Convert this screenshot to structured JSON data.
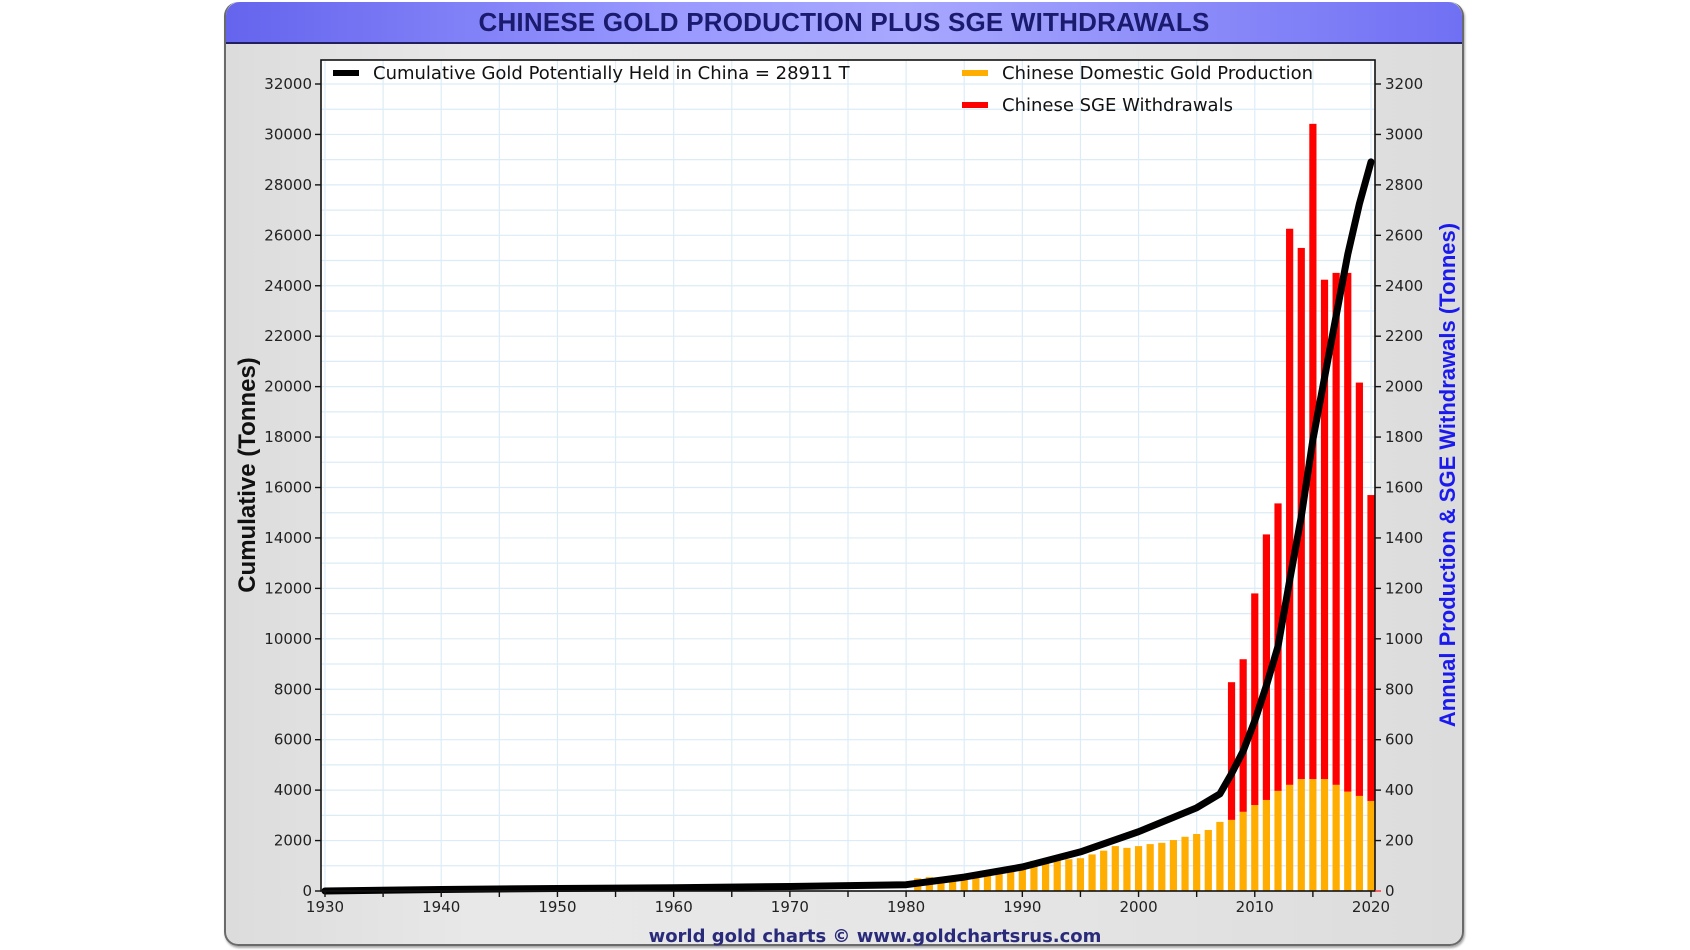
{
  "chart_data": {
    "type": "bar",
    "title": "CHINESE GOLD PRODUCTION PLUS SGE WITHDRAWALS",
    "xlabel": "",
    "ylabel_left": "Cumulative (Tonnes)",
    "ylabel_right": "Annual Production & SGE Withdrawals (Tonnes)",
    "credit": "world gold charts © www.goldchartsrus.com",
    "xlim": [
      1930,
      2020
    ],
    "ylim_left": [
      0,
      32000
    ],
    "ylim_right": [
      0,
      3200
    ],
    "grid": true,
    "legend_position": "top",
    "x_ticks": [
      1930,
      1940,
      1950,
      1960,
      1970,
      1980,
      1990,
      2000,
      2010,
      2020
    ],
    "y_ticks_left": [
      0,
      2000,
      4000,
      6000,
      8000,
      10000,
      12000,
      14000,
      16000,
      18000,
      20000,
      22000,
      24000,
      26000,
      28000,
      30000,
      32000
    ],
    "y_ticks_right": [
      0,
      200,
      400,
      600,
      800,
      1000,
      1200,
      1400,
      1600,
      1800,
      2000,
      2200,
      2400,
      2600,
      2800,
      3000,
      3200
    ],
    "legend": [
      {
        "label": "Cumulative Gold Potentially Held in China  = 28911 T",
        "color": "#000000"
      },
      {
        "label": "Chinese Domestic Gold Production",
        "color": "#ffad00"
      },
      {
        "label": "Chinese SGE Withdrawals",
        "color": "#ff0000"
      }
    ],
    "series": [
      {
        "name": "Chinese Domestic Gold Production",
        "axis": "right",
        "color": "#ffad00",
        "x": [
          1981,
          1982,
          1983,
          1984,
          1985,
          1986,
          1987,
          1988,
          1989,
          1990,
          1991,
          1992,
          1993,
          1994,
          1995,
          1996,
          1997,
          1998,
          1999,
          2000,
          2001,
          2002,
          2003,
          2004,
          2005,
          2006,
          2007,
          2008,
          2009,
          2010,
          2011,
          2012,
          2013,
          2014,
          2015,
          2016,
          2017,
          2018,
          2019,
          2020
        ],
        "values": [
          50,
          55,
          55,
          55,
          63,
          63,
          67,
          72,
          90,
          96,
          120,
          126,
          122,
          126,
          130,
          145,
          160,
          178,
          171,
          178,
          186,
          191,
          202,
          215,
          226,
          242,
          274,
          282,
          314,
          341,
          361,
          397,
          421,
          444,
          444,
          444,
          421,
          394,
          377,
          357
        ]
      },
      {
        "name": "Chinese SGE Withdrawals",
        "axis": "right",
        "color": "#ff0000",
        "x": [
          2008,
          2009,
          2010,
          2011,
          2012,
          2013,
          2014,
          2015,
          2016,
          2017,
          2018,
          2019,
          2020
        ],
        "values": [
          828,
          919,
          1180,
          1414,
          1537,
          2626,
          2550,
          3042,
          2424,
          2451,
          2451,
          2016,
          1570
        ]
      },
      {
        "name": "Cumulative Gold Potentially Held in China",
        "axis": "left",
        "color": "#000000",
        "x": [
          1930,
          1940,
          1950,
          1960,
          1970,
          1980,
          1985,
          1990,
          1995,
          2000,
          2005,
          2007,
          2008,
          2009,
          2010,
          2011,
          2012,
          2013,
          2014,
          2015,
          2016,
          2017,
          2018,
          2019,
          2020
        ],
        "values": [
          0,
          60,
          100,
          130,
          180,
          250,
          550,
          950,
          1550,
          2350,
          3300,
          3850,
          4650,
          5550,
          6750,
          8150,
          9700,
          12300,
          14850,
          17900,
          20350,
          22800,
          25250,
          27250,
          28911
        ]
      }
    ]
  }
}
